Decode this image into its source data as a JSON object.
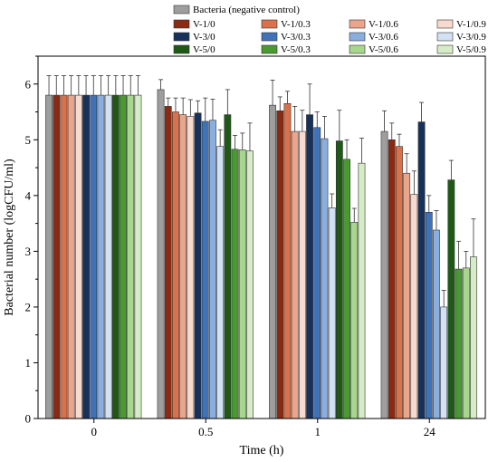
{
  "chart_data": {
    "type": "bar",
    "title": "",
    "xlabel": "Time (h)",
    "ylabel": "Bacterial number (logCFU/ml)",
    "ylim": [
      0,
      6.5
    ],
    "yticks": [
      0,
      1,
      2,
      3,
      4,
      5,
      6
    ],
    "categories": [
      "0",
      "0.5",
      "1",
      "24"
    ],
    "grid": false,
    "legend_position": "top",
    "series": [
      {
        "name": "Bacteria (negative control)",
        "color": "#9e9e9e",
        "values": [
          5.8,
          5.9,
          5.62,
          5.15
        ],
        "errors": [
          0.35,
          0.18,
          0.45,
          0.37
        ]
      },
      {
        "name": "V-1/0",
        "color": "#8b2a12",
        "values": [
          5.8,
          5.6,
          5.52,
          5.0
        ],
        "errors": [
          0.35,
          0.15,
          0.25,
          0.3
        ]
      },
      {
        "name": "V-1/0.3",
        "color": "#d9714b",
        "values": [
          5.8,
          5.5,
          5.65,
          4.88
        ],
        "errors": [
          0.35,
          0.25,
          0.22,
          0.22
        ]
      },
      {
        "name": "V-1/0.6",
        "color": "#eaa58a",
        "values": [
          5.8,
          5.45,
          5.15,
          4.4
        ],
        "errors": [
          0.35,
          0.3,
          0.45,
          0.35
        ]
      },
      {
        "name": "V-1/0.9",
        "color": "#f7d9cd",
        "values": [
          5.8,
          5.42,
          5.15,
          4.02
        ],
        "errors": [
          0.35,
          0.3,
          0.38,
          0.42
        ]
      },
      {
        "name": "V-3/0",
        "color": "#16315a",
        "values": [
          5.8,
          5.48,
          5.45,
          5.32
        ],
        "errors": [
          0.35,
          0.22,
          0.55,
          0.35
        ]
      },
      {
        "name": "V-3/0.3",
        "color": "#3f72b8",
        "values": [
          5.8,
          5.33,
          5.22,
          3.7
        ],
        "errors": [
          0.35,
          0.42,
          0.28,
          0.3
        ]
      },
      {
        "name": "V-3/0.6",
        "color": "#8aaedd",
        "values": [
          5.8,
          5.35,
          5.02,
          3.38
        ],
        "errors": [
          0.35,
          0.38,
          0.4,
          0.35
        ]
      },
      {
        "name": "V-3/0.9",
        "color": "#d2e1f3",
        "values": [
          5.8,
          4.88,
          3.78,
          2.0
        ],
        "errors": [
          0.35,
          0.3,
          0.25,
          0.3
        ]
      },
      {
        "name": "V-5/0",
        "color": "#1e5a16",
        "values": [
          5.8,
          5.45,
          4.98,
          4.28
        ],
        "errors": [
          0.35,
          0.45,
          0.55,
          0.35
        ]
      },
      {
        "name": "V-5/0.3",
        "color": "#4a9a32",
        "values": [
          5.8,
          4.83,
          4.65,
          2.68
        ],
        "errors": [
          0.35,
          0.25,
          0.35,
          0.5
        ]
      },
      {
        "name": "V-5/0.6",
        "color": "#a7d68d",
        "values": [
          5.8,
          4.82,
          3.52,
          2.7
        ],
        "errors": [
          0.35,
          0.3,
          0.25,
          0.3
        ]
      },
      {
        "name": "V-5/0.9",
        "color": "#d6ecc6",
        "values": [
          5.8,
          4.8,
          4.58,
          2.9
        ],
        "errors": [
          0.35,
          0.5,
          0.45,
          0.68
        ]
      }
    ]
  }
}
